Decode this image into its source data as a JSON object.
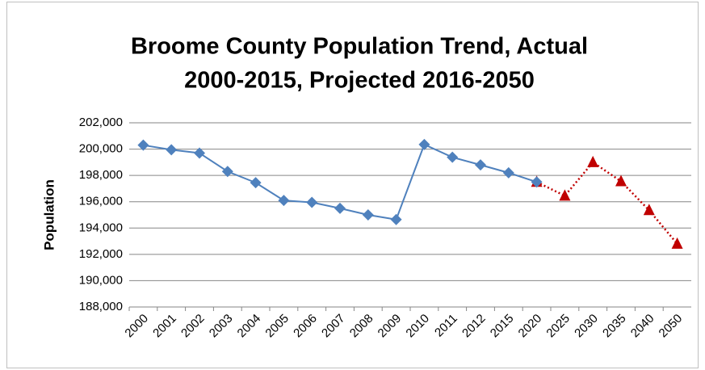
{
  "chart_data": {
    "type": "line",
    "title": [
      "Broome County Population Trend, Actual",
      "2000-2015, Projected 2016-2050"
    ],
    "y_label": "Population",
    "categories": [
      "2000",
      "2001",
      "2002",
      "2003",
      "2004",
      "2005",
      "2006",
      "2007",
      "2008",
      "2009",
      "2010",
      "2011",
      "2012",
      "2015",
      "2020",
      "2025",
      "2030",
      "2035",
      "2040",
      "2050"
    ],
    "series": [
      {
        "color": "#4f81bd",
        "marker": "diamond",
        "dashed": false,
        "values": [
          200300,
          199950,
          199700,
          198300,
          197450,
          196100,
          195950,
          195500,
          195000,
          194650,
          200350,
          199380,
          198800,
          198200,
          197500,
          null,
          null,
          null,
          null,
          null
        ]
      },
      {
        "color": "#c00000",
        "marker": "triangle",
        "dashed": true,
        "values": [
          null,
          null,
          null,
          null,
          null,
          null,
          null,
          null,
          null,
          null,
          null,
          null,
          null,
          null,
          197500,
          196450,
          199000,
          197550,
          195350,
          192800
        ]
      }
    ],
    "ylim": [
      188000,
      202000
    ],
    "yticks": [
      {
        "value": 188000,
        "label": "188,000"
      },
      {
        "value": 190000,
        "label": "190,000"
      },
      {
        "value": 192000,
        "label": "192,000"
      },
      {
        "value": 194000,
        "label": "194,000"
      },
      {
        "value": 196000,
        "label": "196,000"
      },
      {
        "value": 198000,
        "label": "198,000"
      },
      {
        "value": 200000,
        "label": "200,000"
      },
      {
        "value": 202000,
        "label": "202,000"
      }
    ],
    "grid": true
  }
}
